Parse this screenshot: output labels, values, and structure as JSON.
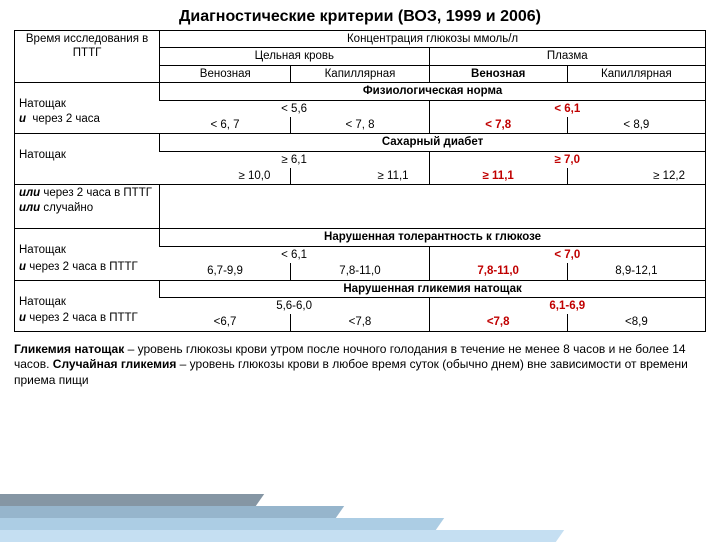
{
  "title": "Диагностические критерии  (ВОЗ, 1999 и 2006)",
  "col_time_header": "Время исследования в ПТТГ",
  "col_conc_header": "Концентрация глюкозы ммоль/л",
  "col_whole_blood": "Цельная кровь",
  "col_plasma": "Плазма",
  "col_venous": "Венозная",
  "col_capillary": "Капиллярная",
  "sec_norm": "Физиологическая норма",
  "norm": {
    "r1_label": "Натощак",
    "r1_v1": "< 5,6",
    "r1_v2": "< 6,1",
    "r2_label": "u  через 2 часа",
    "r2_v1": "< 6, 7",
    "r2_v2": "< 7, 8",
    "r2_v3": "< 7,8",
    "r2_v4": "< 8,9"
  },
  "sec_dm": "Сахарный диабет",
  "dm": {
    "r1_label": "Натощак",
    "r1_v1": "≥ 6,1",
    "r1_v2": "≥ 7,0",
    "r2_v1": "≥ 10,0",
    "r2_v2": "≥ 11,1",
    "r2_v3": "≥ 11,1",
    "r2_v4": "≥ 12,2",
    "r3_label_html": "<span class='ital bold'>или</span> через 2 часа в ПТТГ <span class='ital bold'>или</span> случайно"
  },
  "sec_igt": "Нарушенная толерантность к глюкозе",
  "igt": {
    "r1_label": "Натощак",
    "r1_v1": "< 6,1",
    "r1_v2": "< 7,0",
    "r2_label_html": "<span class='ital bold'>u</span> через 2 часа в ПТТГ",
    "r2_v1": "6,7-9,9",
    "r2_v2": "7,8-11,0",
    "r2_v3": "7,8-11,0",
    "r2_v4": "8,9-12,1"
  },
  "sec_ifg": "Нарушенная гликемия натощак",
  "ifg": {
    "r1_label": "Натощак",
    "r1_v1": "5,6-6,0",
    "r1_v2": "6,1-6,9",
    "r2_label_html": "<span class='ital bold'>u</span> через 2 часа в ПТТГ",
    "r2_v1": "<6,7",
    "r2_v2": "<7,8",
    "r2_v3": "<7,8",
    "r2_v4": "<8,9"
  },
  "footnote_html": "<b>Гликемия натощак</b> – уровень глюкозы крови утром после ночного голодания в течение не менее 8 часов и не более 14 часов. <b>Случайная гликемия</b> – уровень глюкозы крови в любое время суток (обычно днем)  вне зависимости от времени приема пищи",
  "colors": {
    "emphasis": "#c00000",
    "deco": [
      "#0b2e4a",
      "#2e6b99",
      "#5a9bc9",
      "#8cc0e6"
    ]
  }
}
